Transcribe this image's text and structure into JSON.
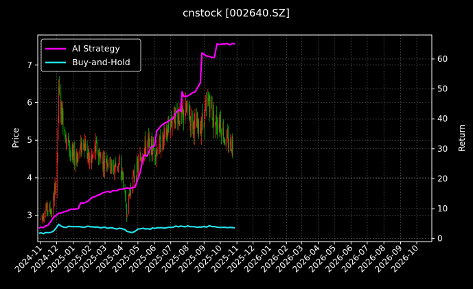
{
  "chart_data": {
    "type": "line",
    "title": "cnstock [002640.SZ]",
    "ylabel_left": "Price",
    "ylabel_right": "Return",
    "grid": true,
    "legend_position": "top-left",
    "x_ticks": [
      "2024-11",
      "2024-12",
      "2025-01",
      "2025-02",
      "2025-03",
      "2025-04",
      "2025-05",
      "2025-06",
      "2025-07",
      "2025-08",
      "2025-09",
      "2025-10",
      "2025-11",
      "2025-12",
      "2026-01",
      "2026-02",
      "2026-03",
      "2026-04",
      "2026-05",
      "2026-06",
      "2026-07",
      "2026-08",
      "2026-09",
      "2026-10"
    ],
    "x_range": [
      "2024-10-27",
      "2026-10-29"
    ],
    "price_axis": {
      "ylim": [
        2.3,
        7.8
      ],
      "ticks": [
        3,
        4,
        5,
        6,
        7
      ]
    },
    "return_axis": {
      "ylim": [
        -1,
        68
      ],
      "ticks": [
        0,
        10,
        20,
        30,
        40,
        50,
        60
      ]
    },
    "colors": {
      "up": "#ff2020",
      "down": "#00b000",
      "ai": "#ff00ff",
      "bh": "#22e0e8",
      "grid": "#5a5a5a"
    },
    "price_series": {
      "name": "",
      "dates": [
        "2024-11-01",
        "2024-11-12",
        "2024-11-22",
        "2024-12-01",
        "2024-12-05",
        "2024-12-12",
        "2024-12-20",
        "2025-01-01",
        "2025-01-10",
        "2025-01-20",
        "2025-02-01",
        "2025-02-12",
        "2025-02-24",
        "2025-03-05",
        "2025-03-15",
        "2025-03-25",
        "2025-04-03",
        "2025-04-10",
        "2025-04-20",
        "2025-05-01",
        "2025-05-10",
        "2025-05-20",
        "2025-06-01",
        "2025-06-12",
        "2025-06-22",
        "2025-07-01",
        "2025-07-10",
        "2025-07-20",
        "2025-08-01",
        "2025-08-12",
        "2025-08-22",
        "2025-09-01",
        "2025-09-10",
        "2025-09-20",
        "2025-10-01",
        "2025-10-10",
        "2025-10-20",
        "2025-10-25"
      ],
      "values": [
        2.9,
        3.2,
        3.1,
        4.0,
        6.2,
        5.6,
        5.0,
        4.5,
        4.6,
        5.0,
        4.4,
        4.8,
        4.4,
        4.5,
        4.2,
        4.4,
        4.0,
        3.1,
        3.9,
        4.3,
        4.7,
        4.9,
        4.7,
        4.9,
        5.1,
        5.5,
        5.7,
        5.6,
        5.8,
        5.4,
        5.3,
        5.6,
        6.1,
        5.5,
        5.5,
        5.0,
        4.9,
        4.9
      ]
    },
    "series": [
      {
        "name": "AI Strategy",
        "dates": [
          "2024-10-29",
          "2024-11-15",
          "2024-11-25",
          "2024-12-05",
          "2024-12-15",
          "2024-12-20",
          "2025-01-01",
          "2025-01-10",
          "2025-01-15",
          "2025-01-25",
          "2025-02-10",
          "2025-03-01",
          "2025-03-20",
          "2025-04-01",
          "2025-04-20",
          "2025-04-26",
          "2025-04-30",
          "2025-05-05",
          "2025-05-12",
          "2025-05-18",
          "2025-05-25",
          "2025-06-01",
          "2025-06-05",
          "2025-06-15",
          "2025-06-25",
          "2025-07-05",
          "2025-07-15",
          "2025-07-20",
          "2025-07-22",
          "2025-07-25",
          "2025-08-05",
          "2025-08-15",
          "2025-08-25",
          "2025-08-28",
          "2025-09-05",
          "2025-09-15",
          "2025-09-20",
          "2025-09-25",
          "2025-10-05",
          "2025-10-10",
          "2025-10-28"
        ],
        "values": [
          3.5,
          4.5,
          7.0,
          8.5,
          9.0,
          9.2,
          9.8,
          10.0,
          12.0,
          12.2,
          14.0,
          15.5,
          16.0,
          16.5,
          17.0,
          17.2,
          19.5,
          22.0,
          28.0,
          27.5,
          30.5,
          31.0,
          36.0,
          38.0,
          39.0,
          40.0,
          43.0,
          42.5,
          49.0,
          47.5,
          48.0,
          49.0,
          52.0,
          62.0,
          61.0,
          60.5,
          60.5,
          65.0,
          65.0,
          65.0,
          65.0
        ]
      },
      {
        "name": "Buy-and-Hold",
        "dates": [
          "2024-10-29",
          "2024-11-15",
          "2024-11-25",
          "2024-12-05",
          "2024-12-15",
          "2025-01-01",
          "2025-01-20",
          "2025-02-01",
          "2025-02-20",
          "2025-03-10",
          "2025-04-01",
          "2025-04-20",
          "2025-05-01",
          "2025-05-20",
          "2025-06-10",
          "2025-07-01",
          "2025-07-20",
          "2025-08-10",
          "2025-09-01",
          "2025-09-20",
          "2025-10-10",
          "2025-10-28"
        ],
        "values": [
          1.8,
          2.0,
          2.5,
          4.8,
          3.8,
          4.0,
          3.8,
          4.0,
          3.6,
          3.6,
          3.3,
          2.0,
          3.2,
          3.3,
          3.6,
          3.8,
          4.2,
          4.0,
          4.1,
          4.0,
          3.8,
          3.6
        ]
      }
    ]
  }
}
